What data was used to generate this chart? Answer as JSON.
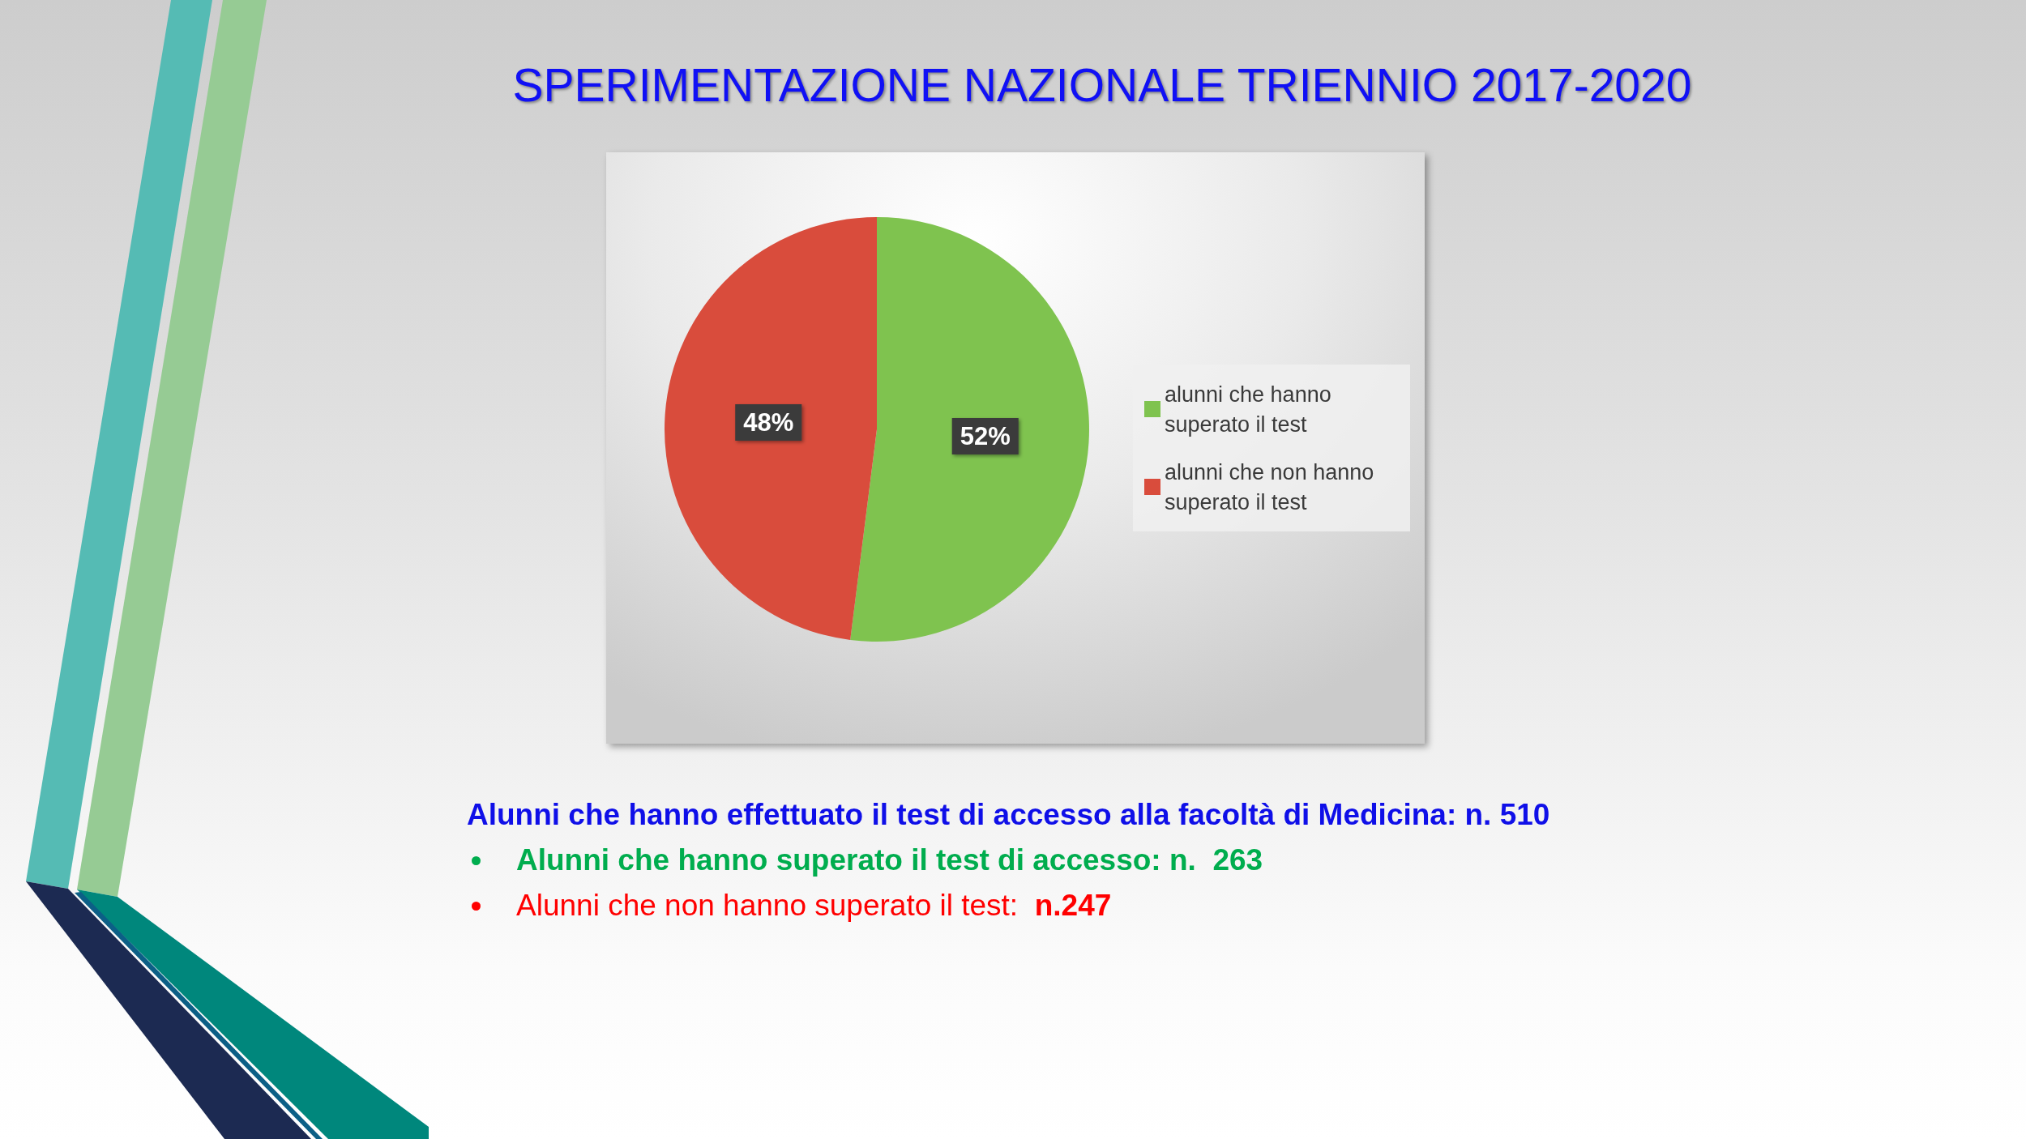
{
  "chart_data": {
    "type": "pie",
    "title": "SPERIMENTAZIONE NAZIONALE TRIENNIO 2017-2020",
    "categories": [
      "alunni che hanno superato il test",
      "alunni che non hanno superato il test"
    ],
    "values": [
      52,
      48
    ],
    "colors": [
      "#7fc34f",
      "#d94c3c"
    ],
    "value_labels": [
      "52%",
      "48%"
    ],
    "legend": "right",
    "annotations": [
      "Alunni che hanno effettuato il test di accesso alla facoltà di Medicina: n. 510",
      "Alunni che hanno superato il test di accesso: n.  263",
      "Alunni che non hanno superato il test:  n.247"
    ]
  }
}
